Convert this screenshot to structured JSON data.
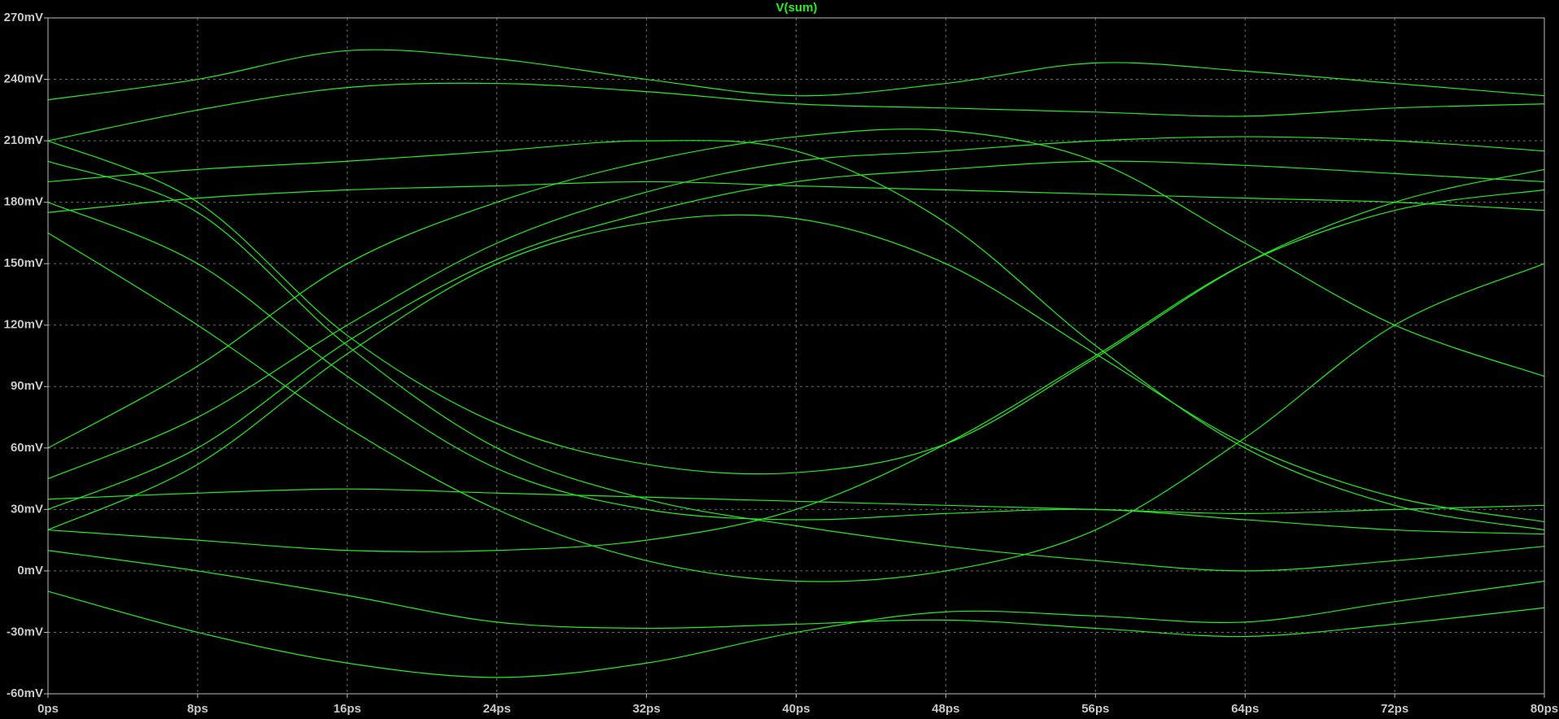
{
  "chart_data": {
    "type": "line",
    "title": "V(sum)",
    "color": "#22ee22",
    "grid": true,
    "xlim": [
      0,
      80
    ],
    "ylim": [
      -60,
      270
    ],
    "xticks": [
      {
        "value": 0,
        "label": "0ps"
      },
      {
        "value": 8,
        "label": "8ps"
      },
      {
        "value": 16,
        "label": "16ps"
      },
      {
        "value": 24,
        "label": "24ps"
      },
      {
        "value": 32,
        "label": "32ps"
      },
      {
        "value": 40,
        "label": "40ps"
      },
      {
        "value": 48,
        "label": "48ps"
      },
      {
        "value": 56,
        "label": "56ps"
      },
      {
        "value": 64,
        "label": "64ps"
      },
      {
        "value": 72,
        "label": "72ps"
      },
      {
        "value": 80,
        "label": "80ps"
      }
    ],
    "yticks": [
      {
        "value": -60,
        "label": "-60mV"
      },
      {
        "value": -30,
        "label": "-30mV"
      },
      {
        "value": 0,
        "label": "0mV"
      },
      {
        "value": 30,
        "label": "30mV"
      },
      {
        "value": 60,
        "label": "60mV"
      },
      {
        "value": 90,
        "label": "90mV"
      },
      {
        "value": 120,
        "label": "120mV"
      },
      {
        "value": 150,
        "label": "150mV"
      },
      {
        "value": 180,
        "label": "180mV"
      },
      {
        "value": 210,
        "label": "210mV"
      },
      {
        "value": 240,
        "label": "240mV"
      },
      {
        "value": 270,
        "label": "270mV"
      }
    ],
    "x": [
      0,
      8,
      16,
      24,
      32,
      40,
      48,
      56,
      64,
      72,
      80
    ],
    "series": [
      {
        "values": [
          230,
          240,
          254,
          250,
          240,
          232,
          238,
          248,
          244,
          238,
          232
        ]
      },
      {
        "values": [
          210,
          225,
          236,
          238,
          234,
          228,
          226,
          224,
          222,
          226,
          228
        ]
      },
      {
        "values": [
          10,
          0,
          -12,
          -25,
          -28,
          -26,
          -24,
          -28,
          -32,
          -26,
          -18
        ]
      },
      {
        "values": [
          -10,
          -30,
          -45,
          -52,
          -45,
          -30,
          -20,
          -22,
          -25,
          -15,
          -5
        ]
      },
      {
        "values": [
          200,
          175,
          110,
          60,
          35,
          22,
          12,
          5,
          0,
          5,
          12
        ]
      },
      {
        "values": [
          180,
          150,
          95,
          50,
          30,
          25,
          28,
          30,
          25,
          20,
          18
        ]
      },
      {
        "values": [
          30,
          60,
          112,
          152,
          175,
          190,
          196,
          200,
          198,
          194,
          190
        ]
      },
      {
        "values": [
          45,
          75,
          120,
          160,
          185,
          200,
          205,
          210,
          212,
          210,
          205
        ]
      },
      {
        "values": [
          190,
          196,
          200,
          205,
          210,
          205,
          170,
          110,
          60,
          32,
          20
        ]
      },
      {
        "values": [
          20,
          15,
          10,
          10,
          15,
          30,
          62,
          105,
          150,
          176,
          186
        ]
      },
      {
        "values": [
          210,
          180,
          115,
          72,
          52,
          48,
          62,
          104,
          150,
          180,
          196
        ]
      },
      {
        "values": [
          20,
          52,
          106,
          150,
          170,
          172,
          150,
          106,
          62,
          36,
          24
        ]
      },
      {
        "values": [
          175,
          182,
          186,
          188,
          190,
          188,
          186,
          184,
          182,
          180,
          176
        ]
      },
      {
        "values": [
          35,
          38,
          40,
          38,
          36,
          34,
          32,
          30,
          28,
          30,
          32
        ]
      },
      {
        "values": [
          165,
          120,
          70,
          30,
          5,
          -5,
          0,
          20,
          65,
          120,
          150
        ]
      },
      {
        "values": [
          60,
          100,
          150,
          180,
          200,
          212,
          215,
          200,
          160,
          120,
          95
        ]
      }
    ]
  }
}
